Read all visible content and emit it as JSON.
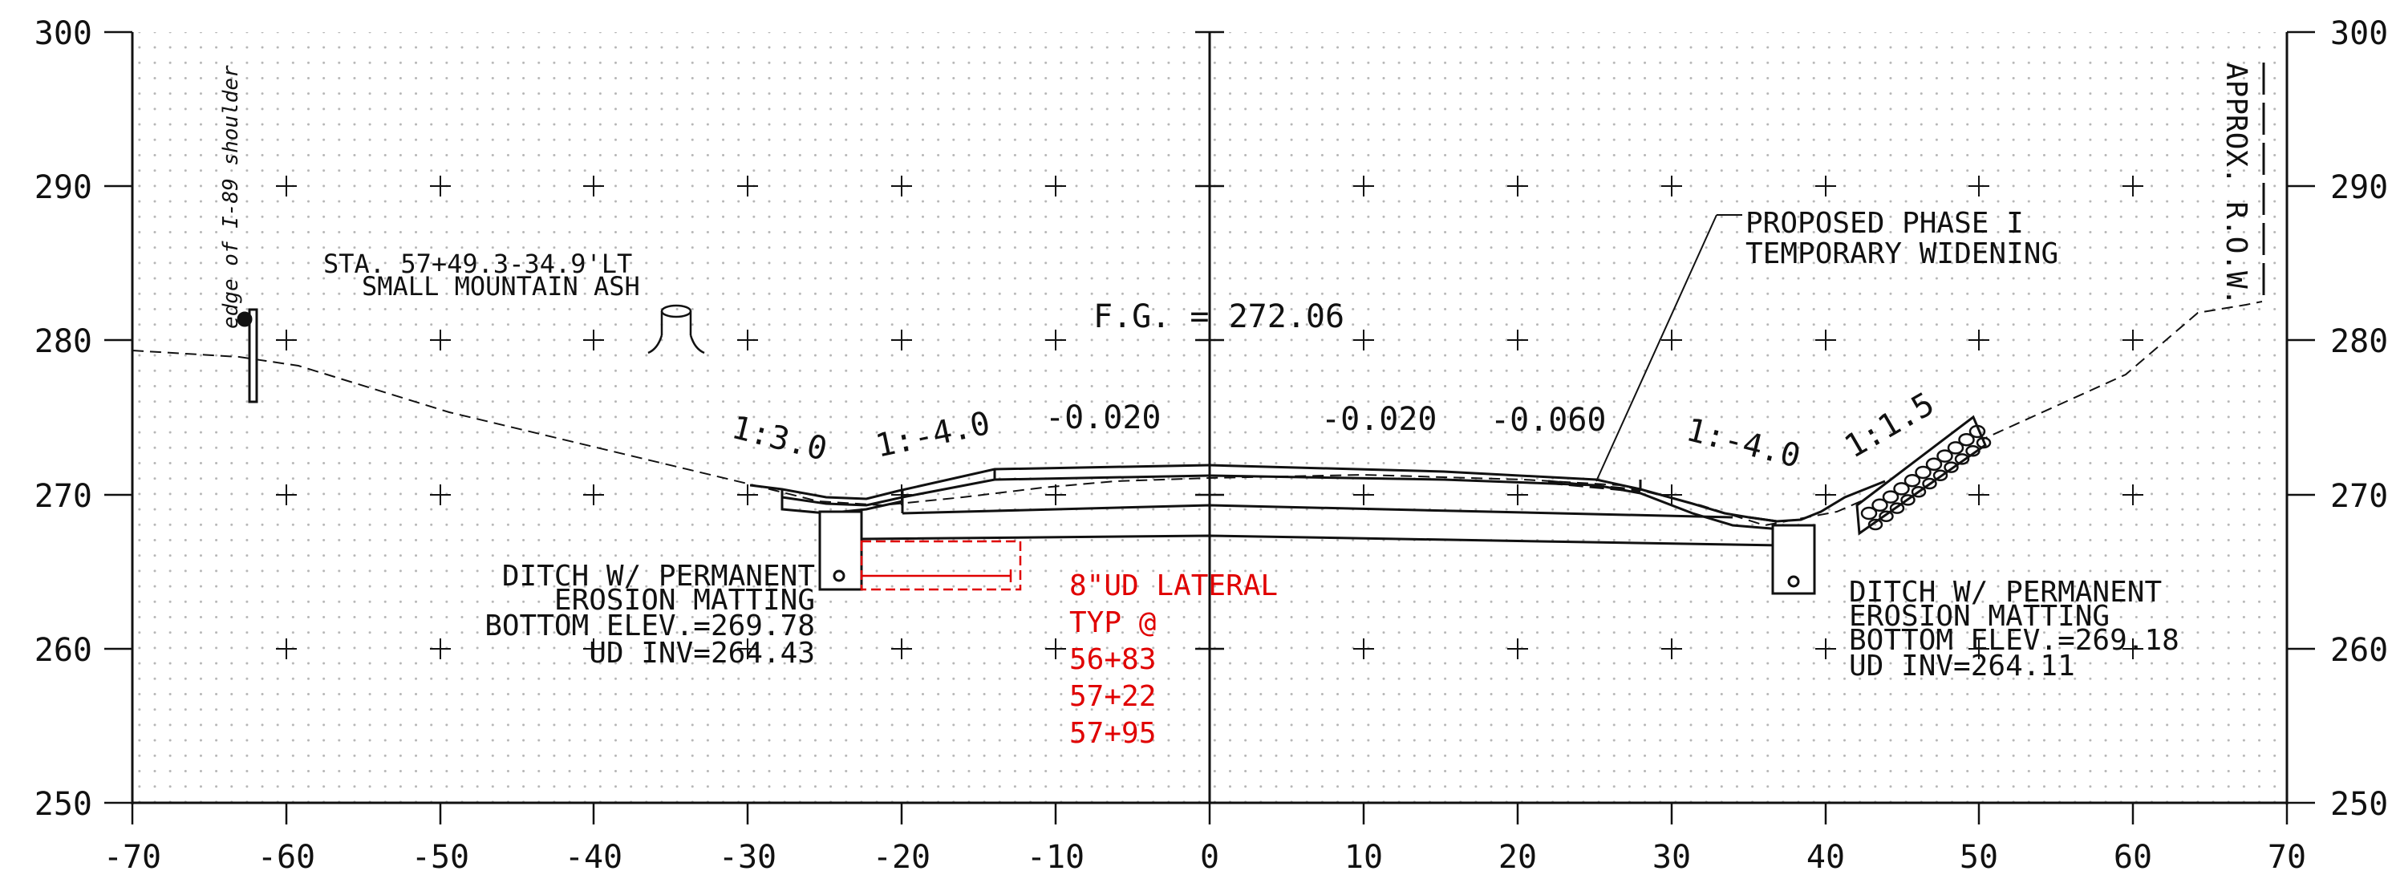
{
  "axes": {
    "y_ticks": [
      "300",
      "290",
      "280",
      "270",
      "260",
      "250"
    ],
    "x_ticks": [
      "-70",
      "-60",
      "-50",
      "-40",
      "-30",
      "-20",
      "-10",
      "0",
      "10",
      "20",
      "30",
      "40",
      "50",
      "60",
      "70"
    ]
  },
  "labels": {
    "shoulder": "edge of I-89 shoulder",
    "tree_line1": "STA. 57+49.3-34.9'LT",
    "tree_line2": "SMALL MOUNTAIN ASH",
    "fg": "F.G. = 272.06",
    "slope_l1": "1:3.0",
    "slope_l2": "1:-4.0",
    "cross_l": "-0.020",
    "cross_r1": "-0.020",
    "cross_r2": "-0.060",
    "slope_r1": "1:-4.0",
    "slope_r2": "1:1.5",
    "proposed1": "PROPOSED PHASE I",
    "proposed2": "TEMPORARY WIDENING",
    "row": "APPROX. R.O.W.",
    "ditch_left": [
      "DITCH W/ PERMANENT",
      "EROSION MATTING",
      "BOTTOM ELEV.=269.78",
      "UD INV=264.43"
    ],
    "ditch_right": [
      "DITCH W/ PERMANENT",
      "EROSION MATTING",
      "BOTTOM ELEV.=269.18",
      "UD INV=264.11"
    ],
    "ud_lateral": [
      "8\"UD LATERAL",
      "TYP @",
      "56+83",
      "57+22",
      "57+95"
    ]
  },
  "colors": {
    "ink": "#111111",
    "red": "#e00000",
    "dots": "#b5b5b5"
  }
}
